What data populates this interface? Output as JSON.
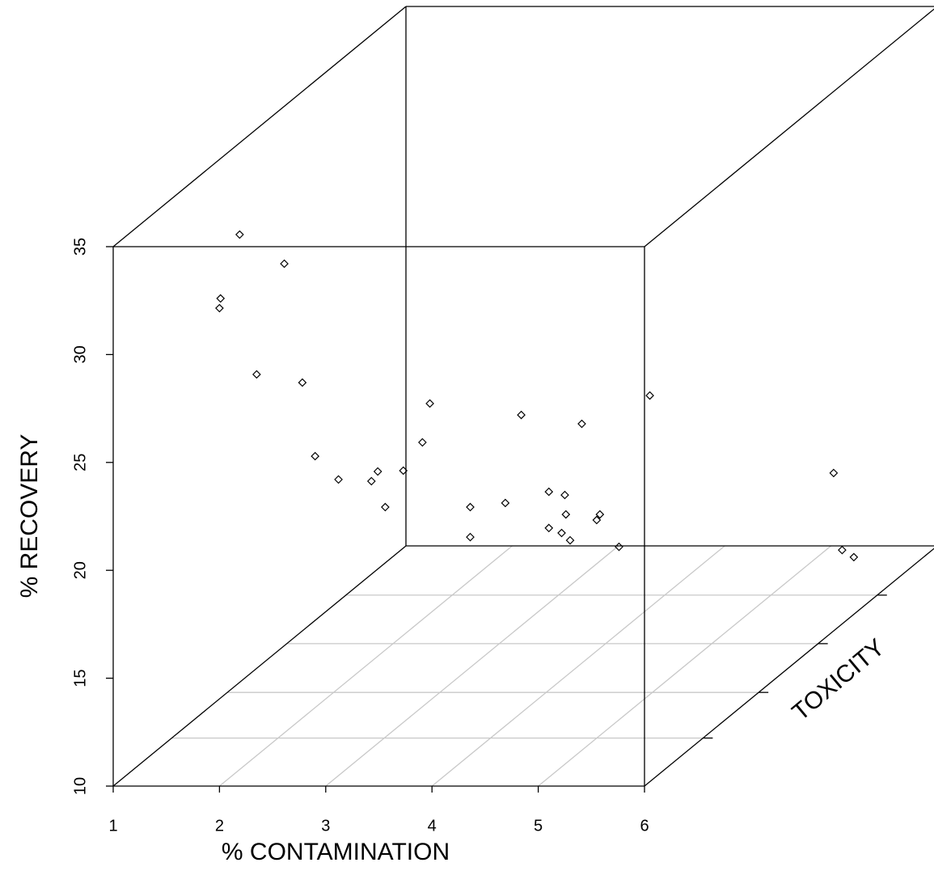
{
  "chart_data": {
    "type": "scatter3d",
    "x_label": "% CONTAMINATION",
    "y_label": "% RECOVERY",
    "z_label": "TOXICITY",
    "x": [
      2.19,
      2.61,
      2.01,
      2.0,
      2.35,
      2.78,
      3.98,
      3.91,
      4.84,
      5.41,
      6.05,
      2.9,
      3.12,
      3.43,
      3.49,
      3.73,
      3.56,
      4.36,
      4.69,
      5.1,
      5.25,
      4.36,
      5.1,
      5.22,
      5.26,
      5.3,
      5.58,
      5.55,
      5.76,
      7.78,
      7.86,
      7.97
    ],
    "y": [
      35.56,
      34.21,
      32.6,
      32.15,
      29.08,
      28.7,
      27.73,
      25.93,
      27.2,
      26.79,
      28.1,
      25.29,
      24.21,
      24.13,
      24.58,
      24.62,
      22.93,
      22.93,
      23.12,
      23.64,
      23.49,
      21.54,
      21.96,
      21.73,
      22.59,
      21.39,
      22.59,
      22.33,
      21.09,
      24.51,
      20.94,
      20.61
    ],
    "color": "#000000",
    "xlim": [
      1,
      6
    ],
    "ylim": [
      10,
      35
    ],
    "xticks": [
      1,
      2,
      3,
      4,
      5,
      6
    ],
    "yticks": [
      10,
      15,
      20,
      25,
      30,
      35
    ],
    "grid": true
  }
}
